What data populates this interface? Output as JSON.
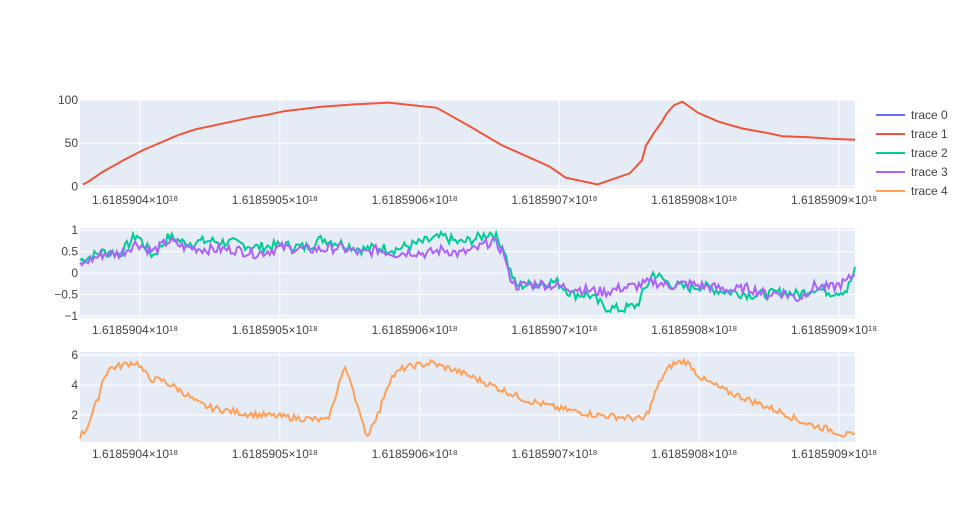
{
  "chart_data": [
    {
      "type": "line",
      "subplot": "top",
      "ylim": [
        -2,
        100
      ],
      "yticks": [
        0,
        50,
        100
      ],
      "grid": true,
      "x": [
        0,
        0.6,
        2.5,
        5,
        7.5,
        10,
        12,
        14,
        17.5,
        21,
        23,
        25,
        29.5,
        34,
        38,
        44,
        48,
        52,
        58,
        60,
        64,
        68,
        69.5,
        70,
        71,
        72,
        72.5,
        73,
        73.5,
        74,
        74.5,
        75,
        76.5,
        79,
        82,
        85,
        87,
        90,
        93,
        96
      ],
      "x_tick_positions": [
        0,
        1,
        2,
        3,
        4,
        5
      ],
      "x_tick_labels": [
        "1.6185904×10¹⁸",
        "1.6185905×10¹⁸",
        "1.6185906×10¹⁸",
        "1.6185907×10¹⁸",
        "1.6185908×10¹⁸",
        "1.6185909×10¹⁸"
      ],
      "series": [
        {
          "name": "trace 1",
          "color": "#EF553B",
          "values": [
            2,
            5,
            17,
            30,
            42,
            52,
            60,
            66,
            73,
            80,
            83,
            87,
            92,
            95,
            97,
            91,
            70,
            48,
            23,
            10,
            2,
            15,
            30,
            47,
            62,
            75,
            83,
            89,
            94,
            96,
            98,
            95,
            85,
            75,
            67,
            62,
            58,
            57,
            55,
            54
          ]
        }
      ]
    },
    {
      "type": "line",
      "subplot": "middle",
      "ylim": [
        -1.05,
        1.05
      ],
      "yticks": [
        -1,
        -0.5,
        0,
        0.5,
        1
      ],
      "yticklabels": [
        "−1",
        "−0.5",
        "0",
        "0.5",
        "1"
      ],
      "grid": true,
      "series": [
        {
          "name": "trace 2",
          "color": "#00CC96"
        },
        {
          "name": "trace 3",
          "color": "#AB63FA"
        }
      ],
      "keypoints": {
        "trace 2": [
          [
            0,
            0.3
          ],
          [
            3,
            0.5
          ],
          [
            5,
            0.45
          ],
          [
            7,
            0.9
          ],
          [
            9,
            0.4
          ],
          [
            11,
            0.85
          ],
          [
            13,
            0.7
          ],
          [
            16,
            0.75
          ],
          [
            19,
            0.7
          ],
          [
            22,
            0.6
          ],
          [
            25,
            0.65
          ],
          [
            28,
            0.6
          ],
          [
            30,
            0.8
          ],
          [
            32,
            0.7
          ],
          [
            35,
            0.55
          ],
          [
            37,
            0.6
          ],
          [
            39,
            0.55
          ],
          [
            41,
            0.65
          ],
          [
            43,
            0.75
          ],
          [
            45,
            0.85
          ],
          [
            47,
            0.7
          ],
          [
            49,
            0.8
          ],
          [
            51,
            0.95
          ],
          [
            52.5,
            0.6
          ],
          [
            53,
            0.2
          ],
          [
            54,
            -0.3
          ],
          [
            57,
            -0.25
          ],
          [
            59,
            -0.2
          ],
          [
            61,
            -0.5
          ],
          [
            63,
            -0.5
          ],
          [
            65,
            -0.8
          ],
          [
            67,
            -0.85
          ],
          [
            69,
            -0.75
          ],
          [
            71,
            0.0
          ],
          [
            73,
            -0.25
          ],
          [
            75,
            -0.35
          ],
          [
            77,
            -0.3
          ],
          [
            79,
            -0.4
          ],
          [
            81,
            -0.45
          ],
          [
            83,
            -0.5
          ],
          [
            85,
            -0.5
          ],
          [
            87,
            -0.45
          ],
          [
            89,
            -0.5
          ],
          [
            91,
            -0.35
          ],
          [
            93,
            -0.45
          ],
          [
            95,
            -0.4
          ],
          [
            96,
            0.05
          ]
        ],
        "trace 3": [
          [
            0,
            0.2
          ],
          [
            3,
            0.45
          ],
          [
            5,
            0.45
          ],
          [
            7,
            0.7
          ],
          [
            9,
            0.5
          ],
          [
            11,
            0.75
          ],
          [
            13,
            0.6
          ],
          [
            16,
            0.55
          ],
          [
            19,
            0.55
          ],
          [
            22,
            0.45
          ],
          [
            25,
            0.6
          ],
          [
            28,
            0.55
          ],
          [
            30,
            0.55
          ],
          [
            32,
            0.6
          ],
          [
            35,
            0.45
          ],
          [
            37,
            0.55
          ],
          [
            39,
            0.45
          ],
          [
            41,
            0.5
          ],
          [
            43,
            0.45
          ],
          [
            45,
            0.55
          ],
          [
            47,
            0.45
          ],
          [
            49,
            0.55
          ],
          [
            51,
            0.75
          ],
          [
            52.5,
            0.5
          ],
          [
            53,
            0.0
          ],
          [
            54,
            -0.3
          ],
          [
            57,
            -0.25
          ],
          [
            59,
            -0.3
          ],
          [
            61,
            -0.35
          ],
          [
            63,
            -0.4
          ],
          [
            65,
            -0.45
          ],
          [
            67,
            -0.35
          ],
          [
            69,
            -0.3
          ],
          [
            71,
            -0.2
          ],
          [
            73,
            -0.3
          ],
          [
            75,
            -0.25
          ],
          [
            77,
            -0.3
          ],
          [
            79,
            -0.35
          ],
          [
            81,
            -0.4
          ],
          [
            83,
            -0.35
          ],
          [
            85,
            -0.5
          ],
          [
            87,
            -0.45
          ],
          [
            89,
            -0.6
          ],
          [
            91,
            -0.3
          ],
          [
            93,
            -0.35
          ],
          [
            95,
            -0.2
          ],
          [
            96,
            0.0
          ]
        ]
      }
    },
    {
      "type": "line",
      "subplot": "bottom",
      "ylim": [
        0.2,
        6.2
      ],
      "yticks": [
        2,
        4,
        6
      ],
      "grid": true,
      "series": [
        {
          "name": "trace 4",
          "color": "#FFA15A"
        }
      ],
      "keypoints": {
        "trace 4": [
          [
            0,
            0.6
          ],
          [
            1,
            1.0
          ],
          [
            2,
            2.0
          ],
          [
            3,
            3.0
          ],
          [
            4,
            4.5
          ],
          [
            5,
            5.1
          ],
          [
            7,
            5.3
          ],
          [
            9,
            5.5
          ],
          [
            10,
            5.4
          ],
          [
            11,
            4.8
          ],
          [
            12,
            4.4
          ],
          [
            14,
            4.3
          ],
          [
            16,
            3.9
          ],
          [
            18,
            3.4
          ],
          [
            20,
            2.8
          ],
          [
            22,
            2.5
          ],
          [
            25,
            2.3
          ],
          [
            28,
            2.1
          ],
          [
            31,
            2.0
          ],
          [
            34,
            1.9
          ],
          [
            37,
            1.8
          ],
          [
            40,
            1.7
          ],
          [
            42,
            1.6
          ],
          [
            43,
            2.5
          ],
          [
            44,
            4.0
          ],
          [
            45,
            5.1
          ],
          [
            46,
            4.5
          ],
          [
            47,
            3.0
          ],
          [
            48,
            1.5
          ],
          [
            49,
            0.6
          ],
          [
            50,
            1.6
          ],
          [
            51,
            2.2
          ],
          [
            52,
            3.6
          ],
          [
            53,
            4.5
          ],
          [
            55,
            5.1
          ],
          [
            57,
            5.3
          ],
          [
            59,
            5.4
          ],
          [
            60,
            5.5
          ],
          [
            61,
            5.3
          ],
          [
            63,
            5.1
          ],
          [
            65,
            4.8
          ],
          [
            67,
            4.5
          ],
          [
            70,
            4.0
          ],
          [
            73,
            3.5
          ],
          [
            76,
            3.0
          ],
          [
            79,
            2.7
          ],
          [
            82,
            2.4
          ],
          [
            85,
            2.2
          ],
          [
            88,
            2.0
          ],
          [
            91,
            1.9
          ],
          [
            94,
            1.8
          ],
          [
            96,
            1.7
          ],
          [
            97,
            2.4
          ],
          [
            98,
            3.5
          ],
          [
            99,
            4.4
          ],
          [
            100,
            5.0
          ],
          [
            101,
            5.4
          ],
          [
            102,
            5.5
          ],
          [
            103,
            5.6
          ],
          [
            104,
            5.3
          ],
          [
            105,
            4.8
          ],
          [
            106,
            4.4
          ],
          [
            108,
            4.0
          ],
          [
            110,
            3.6
          ],
          [
            112,
            3.3
          ],
          [
            114,
            3.0
          ],
          [
            116,
            2.7
          ],
          [
            118,
            2.4
          ],
          [
            120,
            2.1
          ],
          [
            122,
            1.7
          ],
          [
            124,
            1.4
          ],
          [
            126,
            1.2
          ],
          [
            128,
            1.0
          ],
          [
            130,
            0.7
          ],
          [
            132,
            0.6
          ]
        ]
      }
    }
  ],
  "legend": {
    "placement": "top-right",
    "items": [
      {
        "label": "trace 0",
        "color": "#636EFA"
      },
      {
        "label": "trace 1",
        "color": "#EF553B"
      },
      {
        "label": "trace 2",
        "color": "#00CC96"
      },
      {
        "label": "trace 3",
        "color": "#AB63FA"
      },
      {
        "label": "trace 4",
        "color": "#FFA15A"
      }
    ]
  }
}
